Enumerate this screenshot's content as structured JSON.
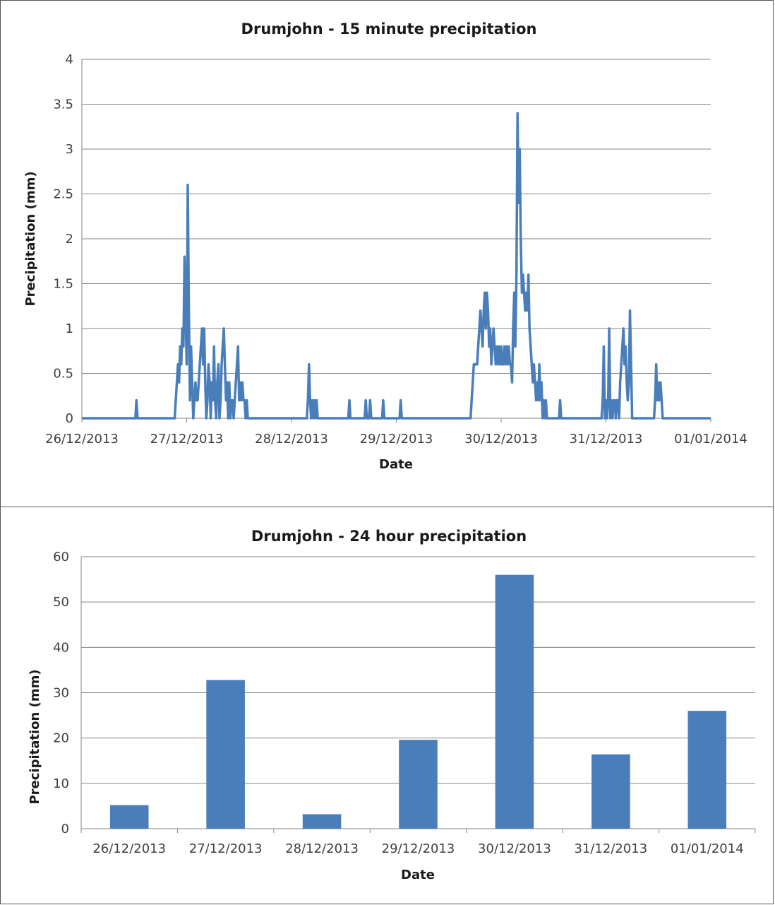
{
  "colors": {
    "series": "#4a7ebb",
    "grid": "#868686",
    "axis": "#868686",
    "text": "#404040"
  },
  "chart_data": [
    {
      "type": "line",
      "title": "Drumjohn - 15 minute precipitation",
      "xlabel": "Date",
      "ylabel": "Precipitation (mm)",
      "ylim": [
        0,
        4
      ],
      "yticks": [
        "0",
        "0.5",
        "1",
        "1.5",
        "2",
        "2.5",
        "3",
        "3.5",
        "4"
      ],
      "xlim": [
        "26/12/2013 00:00",
        "01/01/2014 00:00"
      ],
      "xtick_labels": [
        "26/12/2013",
        "27/12/2013",
        "28/12/2013",
        "29/12/2013",
        "30/12/2013",
        "31/12/2013",
        "01/01/2014"
      ],
      "grid": true,
      "legend": "none",
      "points": [
        [
          "26/12/2013 00:00",
          0
        ],
        [
          "26/12/2013 12:15",
          0
        ],
        [
          "26/12/2013 12:30",
          0.2
        ],
        [
          "26/12/2013 12:45",
          0
        ],
        [
          "26/12/2013 21:15",
          0
        ],
        [
          "26/12/2013 21:30",
          0.2
        ],
        [
          "26/12/2013 21:45",
          0.4
        ],
        [
          "26/12/2013 22:00",
          0.6
        ],
        [
          "26/12/2013 22:15",
          0.4
        ],
        [
          "26/12/2013 22:30",
          0.8
        ],
        [
          "26/12/2013 22:45",
          0.6
        ],
        [
          "26/12/2013 23:00",
          1.0
        ],
        [
          "26/12/2013 23:15",
          0.8
        ],
        [
          "26/12/2013 23:30",
          1.8
        ],
        [
          "26/12/2013 23:45",
          1.2
        ],
        [
          "27/12/2013 00:00",
          0.6
        ],
        [
          "27/12/2013 00:15",
          2.6
        ],
        [
          "27/12/2013 00:30",
          1.2
        ],
        [
          "27/12/2013 00:45",
          0.2
        ],
        [
          "27/12/2013 01:00",
          0.8
        ],
        [
          "27/12/2013 01:15",
          0.4
        ],
        [
          "27/12/2013 01:30",
          0
        ],
        [
          "27/12/2013 01:45",
          0.2
        ],
        [
          "27/12/2013 02:00",
          0.4
        ],
        [
          "27/12/2013 02:15",
          0.2
        ],
        [
          "27/12/2013 02:30",
          0.2
        ],
        [
          "27/12/2013 02:45",
          0.4
        ],
        [
          "27/12/2013 03:00",
          0.6
        ],
        [
          "27/12/2013 03:15",
          0.8
        ],
        [
          "27/12/2013 03:30",
          1.0
        ],
        [
          "27/12/2013 03:45",
          0.6
        ],
        [
          "27/12/2013 04:00",
          1.0
        ],
        [
          "27/12/2013 04:15",
          0.4
        ],
        [
          "27/12/2013 04:30",
          0
        ],
        [
          "27/12/2013 04:45",
          0.2
        ],
        [
          "27/12/2013 05:00",
          0.6
        ],
        [
          "27/12/2013 05:15",
          0.4
        ],
        [
          "27/12/2013 05:30",
          0
        ],
        [
          "27/12/2013 05:45",
          0.4
        ],
        [
          "27/12/2013 06:00",
          0.2
        ],
        [
          "27/12/2013 06:15",
          0.8
        ],
        [
          "27/12/2013 06:30",
          0.2
        ],
        [
          "27/12/2013 06:45",
          0
        ],
        [
          "27/12/2013 07:00",
          0.4
        ],
        [
          "27/12/2013 07:15",
          0.6
        ],
        [
          "27/12/2013 07:30",
          0
        ],
        [
          "27/12/2013 07:45",
          0.2
        ],
        [
          "27/12/2013 08:00",
          0.6
        ],
        [
          "27/12/2013 08:15",
          0.8
        ],
        [
          "27/12/2013 08:30",
          1.0
        ],
        [
          "27/12/2013 08:45",
          0.6
        ],
        [
          "27/12/2013 09:00",
          0.2
        ],
        [
          "27/12/2013 09:15",
          0.4
        ],
        [
          "27/12/2013 09:30",
          0
        ],
        [
          "27/12/2013 09:45",
          0.4
        ],
        [
          "27/12/2013 10:00",
          0
        ],
        [
          "27/12/2013 10:15",
          0.2
        ],
        [
          "27/12/2013 10:30",
          0.2
        ],
        [
          "27/12/2013 10:45",
          0
        ],
        [
          "27/12/2013 11:00",
          0.2
        ],
        [
          "27/12/2013 11:15",
          0.4
        ],
        [
          "27/12/2013 11:30",
          0.6
        ],
        [
          "27/12/2013 11:45",
          0.8
        ],
        [
          "27/12/2013 12:00",
          0.2
        ],
        [
          "27/12/2013 12:15",
          0.4
        ],
        [
          "27/12/2013 12:30",
          0.2
        ],
        [
          "27/12/2013 12:45",
          0.4
        ],
        [
          "27/12/2013 13:00",
          0.2
        ],
        [
          "27/12/2013 13:15",
          0.2
        ],
        [
          "27/12/2013 13:30",
          0
        ],
        [
          "27/12/2013 13:45",
          0.2
        ],
        [
          "27/12/2013 14:00",
          0
        ],
        [
          "28/12/2013 03:30",
          0
        ],
        [
          "28/12/2013 03:45",
          0.2
        ],
        [
          "28/12/2013 04:00",
          0.6
        ],
        [
          "28/12/2013 04:15",
          0.2
        ],
        [
          "28/12/2013 04:30",
          0
        ],
        [
          "28/12/2013 04:45",
          0.2
        ],
        [
          "28/12/2013 05:00",
          0
        ],
        [
          "28/12/2013 05:15",
          0.2
        ],
        [
          "28/12/2013 05:30",
          0
        ],
        [
          "28/12/2013 05:45",
          0.2
        ],
        [
          "28/12/2013 06:00",
          0
        ],
        [
          "28/12/2013 13:00",
          0
        ],
        [
          "28/12/2013 13:15",
          0.2
        ],
        [
          "28/12/2013 13:30",
          0
        ],
        [
          "28/12/2013 16:45",
          0
        ],
        [
          "28/12/2013 17:00",
          0.2
        ],
        [
          "28/12/2013 17:15",
          0
        ],
        [
          "28/12/2013 17:45",
          0
        ],
        [
          "28/12/2013 18:00",
          0.2
        ],
        [
          "28/12/2013 18:15",
          0
        ],
        [
          "28/12/2013 20:45",
          0
        ],
        [
          "28/12/2013 21:00",
          0.2
        ],
        [
          "28/12/2013 21:15",
          0
        ],
        [
          "29/12/2013 00:45",
          0
        ],
        [
          "29/12/2013 01:00",
          0.2
        ],
        [
          "29/12/2013 01:15",
          0
        ],
        [
          "29/12/2013 17:00",
          0
        ],
        [
          "29/12/2013 17:15",
          0.2
        ],
        [
          "29/12/2013 17:30",
          0.4
        ],
        [
          "29/12/2013 17:45",
          0.6
        ],
        [
          "29/12/2013 18:00",
          0.6
        ],
        [
          "29/12/2013 18:30",
          0.6
        ],
        [
          "29/12/2013 18:45",
          0.8
        ],
        [
          "29/12/2013 19:00",
          1.0
        ],
        [
          "29/12/2013 19:15",
          1.2
        ],
        [
          "29/12/2013 19:30",
          1.0
        ],
        [
          "29/12/2013 19:45",
          0.8
        ],
        [
          "29/12/2013 20:00",
          1.2
        ],
        [
          "29/12/2013 20:15",
          1.4
        ],
        [
          "29/12/2013 20:30",
          1.0
        ],
        [
          "29/12/2013 20:45",
          1.4
        ],
        [
          "29/12/2013 21:00",
          1.2
        ],
        [
          "29/12/2013 21:15",
          0.8
        ],
        [
          "29/12/2013 21:30",
          1.0
        ],
        [
          "29/12/2013 21:45",
          0.6
        ],
        [
          "29/12/2013 22:00",
          0.8
        ],
        [
          "29/12/2013 22:15",
          1.0
        ],
        [
          "29/12/2013 22:30",
          0.8
        ],
        [
          "29/12/2013 22:45",
          0.6
        ],
        [
          "29/12/2013 23:00",
          0.8
        ],
        [
          "29/12/2013 23:15",
          0.6
        ],
        [
          "29/12/2013 23:30",
          0.8
        ],
        [
          "29/12/2013 23:45",
          0.6
        ],
        [
          "30/12/2013 00:00",
          0.8
        ],
        [
          "30/12/2013 00:15",
          0.6
        ],
        [
          "30/12/2013 00:30",
          0.6
        ],
        [
          "30/12/2013 00:45",
          0.8
        ],
        [
          "30/12/2013 01:00",
          0.6
        ],
        [
          "30/12/2013 01:15",
          0.8
        ],
        [
          "30/12/2013 01:30",
          0.6
        ],
        [
          "30/12/2013 01:45",
          0.8
        ],
        [
          "30/12/2013 02:00",
          0.6
        ],
        [
          "30/12/2013 02:15",
          0.6
        ],
        [
          "30/12/2013 02:30",
          0.4
        ],
        [
          "30/12/2013 02:45",
          1.0
        ],
        [
          "30/12/2013 03:00",
          1.4
        ],
        [
          "30/12/2013 03:15",
          0.8
        ],
        [
          "30/12/2013 03:30",
          1.6
        ],
        [
          "30/12/2013 03:45",
          3.4
        ],
        [
          "30/12/2013 04:00",
          2.4
        ],
        [
          "30/12/2013 04:15",
          3.0
        ],
        [
          "30/12/2013 04:30",
          2.0
        ],
        [
          "30/12/2013 04:45",
          1.4
        ],
        [
          "30/12/2013 05:00",
          1.6
        ],
        [
          "30/12/2013 05:15",
          1.4
        ],
        [
          "30/12/2013 05:30",
          1.2
        ],
        [
          "30/12/2013 05:45",
          1.4
        ],
        [
          "30/12/2013 06:00",
          1.2
        ],
        [
          "30/12/2013 06:15",
          1.6
        ],
        [
          "30/12/2013 06:30",
          1.0
        ],
        [
          "30/12/2013 06:45",
          0.8
        ],
        [
          "30/12/2013 07:00",
          0.6
        ],
        [
          "30/12/2013 07:15",
          0.4
        ],
        [
          "30/12/2013 07:30",
          0.6
        ],
        [
          "30/12/2013 07:45",
          0.4
        ],
        [
          "30/12/2013 08:00",
          0.2
        ],
        [
          "30/12/2013 08:15",
          0.4
        ],
        [
          "30/12/2013 08:30",
          0.2
        ],
        [
          "30/12/2013 08:45",
          0.6
        ],
        [
          "30/12/2013 09:00",
          0.2
        ],
        [
          "30/12/2013 09:15",
          0.4
        ],
        [
          "30/12/2013 09:30",
          0
        ],
        [
          "30/12/2013 09:45",
          0.2
        ],
        [
          "30/12/2013 10:00",
          0
        ],
        [
          "30/12/2013 10:15",
          0.2
        ],
        [
          "30/12/2013 10:30",
          0
        ],
        [
          "30/12/2013 13:15",
          0
        ],
        [
          "30/12/2013 13:30",
          0.2
        ],
        [
          "30/12/2013 13:45",
          0
        ],
        [
          "30/12/2013 23:00",
          0
        ],
        [
          "30/12/2013 23:15",
          0.2
        ],
        [
          "30/12/2013 23:30",
          0.8
        ],
        [
          "30/12/2013 23:45",
          0
        ],
        [
          "31/12/2013 00:00",
          0.2
        ],
        [
          "31/12/2013 00:15",
          0
        ],
        [
          "31/12/2013 00:30",
          0.2
        ],
        [
          "31/12/2013 00:45",
          1.0
        ],
        [
          "31/12/2013 01:00",
          0
        ],
        [
          "31/12/2013 01:15",
          0.2
        ],
        [
          "31/12/2013 01:30",
          0
        ],
        [
          "31/12/2013 01:45",
          0.2
        ],
        [
          "31/12/2013 02:00",
          0.2
        ],
        [
          "31/12/2013 02:15",
          0
        ],
        [
          "31/12/2013 02:30",
          0.2
        ],
        [
          "31/12/2013 02:45",
          0.2
        ],
        [
          "31/12/2013 03:00",
          0
        ],
        [
          "31/12/2013 03:15",
          0.4
        ],
        [
          "31/12/2013 03:30",
          0.6
        ],
        [
          "31/12/2013 03:45",
          0.8
        ],
        [
          "31/12/2013 04:00",
          1.0
        ],
        [
          "31/12/2013 04:15",
          0.6
        ],
        [
          "31/12/2013 04:30",
          0.8
        ],
        [
          "31/12/2013 04:45",
          0.4
        ],
        [
          "31/12/2013 05:00",
          0.2
        ],
        [
          "31/12/2013 05:15",
          0.4
        ],
        [
          "31/12/2013 05:30",
          1.2
        ],
        [
          "31/12/2013 05:45",
          0.6
        ],
        [
          "31/12/2013 06:00",
          0
        ],
        [
          "31/12/2013 11:00",
          0
        ],
        [
          "31/12/2013 11:15",
          0.2
        ],
        [
          "31/12/2013 11:30",
          0.6
        ],
        [
          "31/12/2013 11:45",
          0.2
        ],
        [
          "31/12/2013 12:00",
          0.4
        ],
        [
          "31/12/2013 12:15",
          0.2
        ],
        [
          "31/12/2013 12:30",
          0.4
        ],
        [
          "31/12/2013 12:45",
          0.2
        ],
        [
          "31/12/2013 13:00",
          0
        ],
        [
          "01/01/2014 00:00",
          0
        ]
      ]
    },
    {
      "type": "bar",
      "title": "Drumjohn - 24 hour precipitation",
      "xlabel": "Date",
      "ylabel": "Precipitation (mm)",
      "ylim": [
        0,
        60
      ],
      "yticks": [
        "0",
        "10",
        "20",
        "30",
        "40",
        "50",
        "60"
      ],
      "grid": true,
      "legend": "none",
      "categories": [
        "26/12/2013",
        "27/12/2013",
        "28/12/2013",
        "29/12/2013",
        "30/12/2013",
        "31/12/2013",
        "01/01/2014"
      ],
      "values": [
        5.2,
        32.8,
        3.2,
        19.6,
        56.0,
        16.4,
        26.0
      ]
    }
  ]
}
